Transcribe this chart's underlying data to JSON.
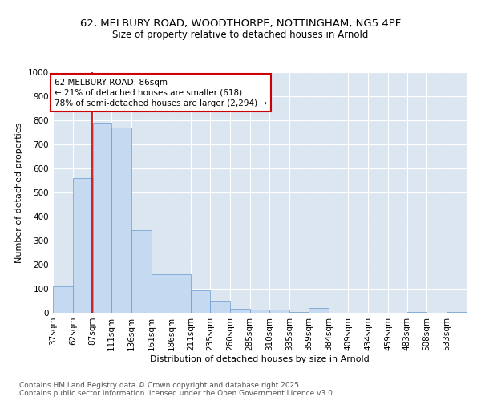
{
  "title_line1": "62, MELBURY ROAD, WOODTHORPE, NOTTINGHAM, NG5 4PF",
  "title_line2": "Size of property relative to detached houses in Arnold",
  "xlabel": "Distribution of detached houses by size in Arnold",
  "ylabel": "Number of detached properties",
  "bar_color": "#c5d9f1",
  "bar_edge_color": "#6699cc",
  "plot_bg_color": "#dce6f1",
  "annotation_text": "62 MELBURY ROAD: 86sqm\n← 21% of detached houses are smaller (618)\n78% of semi-detached houses are larger (2,294) →",
  "vline_x": 86,
  "vline_color": "#cc0000",
  "categories": [
    "37sqm",
    "62sqm",
    "87sqm",
    "111sqm",
    "136sqm",
    "161sqm",
    "186sqm",
    "211sqm",
    "235sqm",
    "260sqm",
    "285sqm",
    "310sqm",
    "335sqm",
    "359sqm",
    "384sqm",
    "409sqm",
    "434sqm",
    "459sqm",
    "483sqm",
    "508sqm",
    "533sqm"
  ],
  "bin_edges": [
    37,
    62,
    87,
    111,
    136,
    161,
    186,
    211,
    235,
    260,
    285,
    310,
    335,
    359,
    384,
    409,
    434,
    459,
    483,
    508,
    533,
    558
  ],
  "values": [
    110,
    560,
    790,
    770,
    345,
    160,
    160,
    95,
    50,
    18,
    13,
    12,
    5,
    20,
    0,
    0,
    0,
    0,
    3,
    0,
    3
  ],
  "ylim": [
    0,
    1000
  ],
  "yticks": [
    0,
    100,
    200,
    300,
    400,
    500,
    600,
    700,
    800,
    900,
    1000
  ],
  "footer_text": "Contains HM Land Registry data © Crown copyright and database right 2025.\nContains public sector information licensed under the Open Government Licence v3.0.",
  "title_fontsize": 9.5,
  "subtitle_fontsize": 8.5,
  "axis_label_fontsize": 8,
  "tick_fontsize": 7.5,
  "annotation_fontsize": 7.5,
  "footer_fontsize": 6.5
}
